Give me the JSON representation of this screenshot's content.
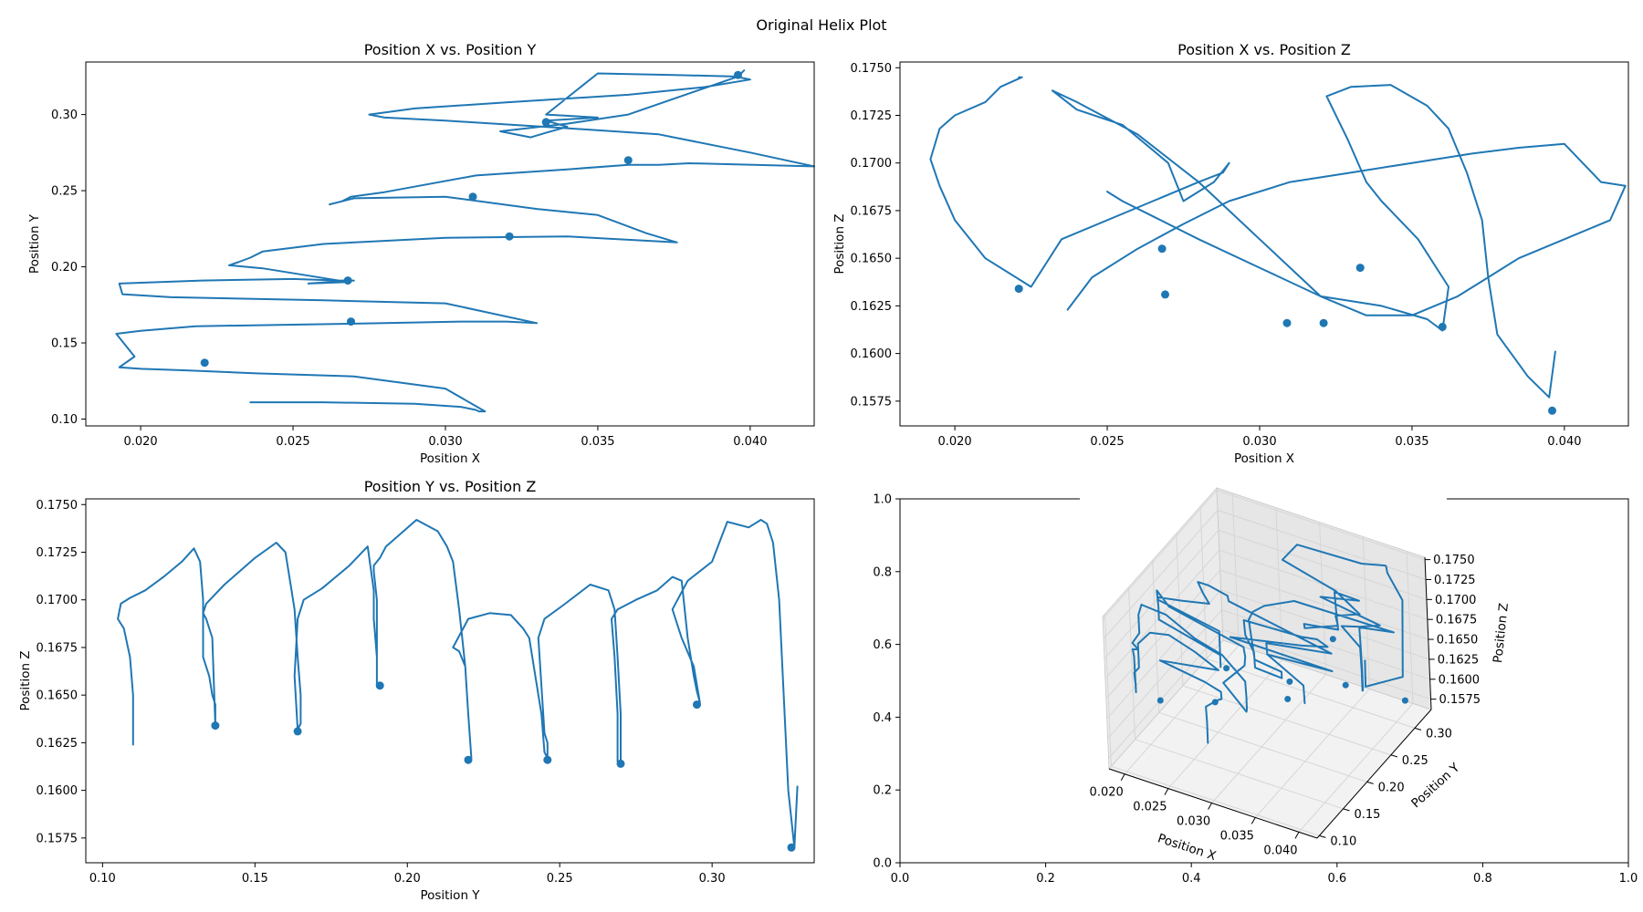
{
  "figure": {
    "suptitle": "Original Helix Plot",
    "line_color": "#1f77b4",
    "background": "#ffffff"
  },
  "chart_data": [
    {
      "type": "line",
      "title": "Position X vs. Position Y",
      "xlabel": "Position X",
      "ylabel": "Position Y",
      "xlim": [
        0.0182,
        0.0421
      ],
      "ylim": [
        0.0955,
        0.3345
      ],
      "xticks": [
        0.02,
        0.025,
        0.03,
        0.035,
        0.04
      ],
      "xtick_labels": [
        "0.020",
        "0.025",
        "0.030",
        "0.035",
        "0.040"
      ],
      "yticks": [
        0.1,
        0.15,
        0.2,
        0.25,
        0.3
      ],
      "ytick_labels": [
        "0.10",
        "0.15",
        "0.20",
        "0.25",
        "0.30"
      ],
      "grid": false,
      "series": [
        {
          "x": [
            0.0236,
            0.026,
            0.029,
            0.0305,
            0.031,
            0.0311,
            0.0313,
            0.03,
            0.027,
            0.0238,
            0.0215,
            0.02,
            0.0193,
            0.0198,
            0.0192,
            0.02,
            0.0218,
            0.025,
            0.028,
            0.0305,
            0.032,
            0.033,
            0.03,
            0.026,
            0.021,
            0.0194,
            0.0193,
            0.022,
            0.025,
            0.0265,
            0.027,
            0.0262,
            0.0255,
            0.0268,
            0.024,
            0.0229,
            0.0232,
            0.0236,
            0.024,
            0.026,
            0.03,
            0.034,
            0.0376,
            0.0366,
            0.035,
            0.033,
            0.03,
            0.027,
            0.0262,
            0.0266,
            0.0269,
            0.028,
            0.031,
            0.034,
            0.036,
            0.037,
            0.038,
            0.0421,
            0.04,
            0.037,
            0.034,
            0.03,
            0.028,
            0.0275,
            0.029,
            0.032,
            0.036,
            0.0385,
            0.04,
            0.0395,
            0.0375,
            0.035,
            0.0333,
            0.035,
            0.0333,
            0.034,
            0.0333,
            0.0328,
            0.0318,
            0.034,
            0.036,
            0.0396,
            0.0398
          ],
          "y": [
            0.111,
            0.111,
            0.11,
            0.108,
            0.106,
            0.105,
            0.105,
            0.12,
            0.128,
            0.13,
            0.132,
            0.133,
            0.134,
            0.141,
            0.156,
            0.158,
            0.161,
            0.162,
            0.163,
            0.164,
            0.164,
            0.163,
            0.176,
            0.178,
            0.18,
            0.182,
            0.189,
            0.191,
            0.192,
            0.191,
            0.191,
            0.19,
            0.189,
            0.19,
            0.199,
            0.201,
            0.203,
            0.206,
            0.21,
            0.215,
            0.219,
            0.22,
            0.216,
            0.222,
            0.234,
            0.238,
            0.246,
            0.245,
            0.241,
            0.243,
            0.246,
            0.249,
            0.26,
            0.264,
            0.267,
            0.267,
            0.268,
            0.266,
            0.275,
            0.287,
            0.291,
            0.296,
            0.298,
            0.3,
            0.304,
            0.308,
            0.313,
            0.318,
            0.323,
            0.325,
            0.326,
            0.327,
            0.3,
            0.298,
            0.296,
            0.292,
            0.288,
            0.285,
            0.289,
            0.294,
            0.3,
            0.325,
            0.329
          ]
        }
      ],
      "markers": {
        "x": [
          0.0221,
          0.0269,
          0.0268,
          0.0321,
          0.0309,
          0.036,
          0.0333,
          0.0396
        ],
        "y": [
          0.137,
          0.164,
          0.191,
          0.22,
          0.246,
          0.27,
          0.295,
          0.326
        ]
      }
    },
    {
      "type": "line",
      "title": "Position X vs. Position Z",
      "xlabel": "Position X",
      "ylabel": "Position Z",
      "xlim": [
        0.0182,
        0.0421
      ],
      "ylim": [
        0.1562,
        0.1753
      ],
      "xticks": [
        0.02,
        0.025,
        0.03,
        0.035,
        0.04
      ],
      "xtick_labels": [
        "0.020",
        "0.025",
        "0.030",
        "0.035",
        "0.040"
      ],
      "yticks": [
        0.1575,
        0.16,
        0.1625,
        0.165,
        0.1675,
        0.17,
        0.1725,
        0.175
      ],
      "ytick_labels": [
        "0.1575",
        "0.1600",
        "0.1625",
        "0.1650",
        "0.1675",
        "0.1700",
        "0.1725",
        "0.1750"
      ],
      "grid": false,
      "series": [
        {
          "x": [
            0.0397,
            0.0395,
            0.0388,
            0.0378,
            0.0375,
            0.0373,
            0.0368,
            0.0362,
            0.0355,
            0.0343,
            0.033,
            0.0322,
            0.0329,
            0.0335,
            0.034,
            0.0352,
            0.0362,
            0.036,
            0.0355,
            0.034,
            0.032,
            0.03,
            0.028,
            0.026,
            0.024,
            0.0232,
            0.024,
            0.0255,
            0.027,
            0.0275,
            0.0285,
            0.029,
            0.0288,
            0.028,
            0.0265,
            0.0235,
            0.0225,
            0.021,
            0.02,
            0.0195,
            0.0192,
            0.0195,
            0.02,
            0.021,
            0.0215,
            0.0222,
            0.0221
          ],
          "y": [
            0.1601,
            0.1577,
            0.1588,
            0.161,
            0.164,
            0.167,
            0.1695,
            0.1718,
            0.173,
            0.1741,
            0.174,
            0.1735,
            0.1712,
            0.169,
            0.168,
            0.166,
            0.1635,
            0.1612,
            0.1618,
            0.1625,
            0.163,
            0.166,
            0.169,
            0.1715,
            0.1732,
            0.1738,
            0.1728,
            0.172,
            0.17,
            0.168,
            0.169,
            0.17,
            0.1695,
            0.169,
            0.168,
            0.166,
            0.1635,
            0.165,
            0.167,
            0.1688,
            0.1702,
            0.1718,
            0.1725,
            0.1732,
            0.174,
            0.1745,
            0.1745
          ]
        },
        {
          "x": [
            0.0237,
            0.0245,
            0.026,
            0.0275,
            0.029,
            0.031,
            0.033,
            0.035,
            0.037,
            0.0385,
            0.04,
            0.0412,
            0.042,
            0.0415,
            0.04,
            0.0385,
            0.0375,
            0.0365,
            0.035,
            0.0335,
            0.032,
            0.03,
            0.028,
            0.0265,
            0.0255,
            0.025
          ],
          "y": [
            0.1623,
            0.164,
            0.1655,
            0.1668,
            0.168,
            0.169,
            0.1695,
            0.17,
            0.1705,
            0.1708,
            0.171,
            0.169,
            0.1688,
            0.167,
            0.166,
            0.165,
            0.164,
            0.163,
            0.162,
            0.162,
            0.163,
            0.1645,
            0.166,
            0.1672,
            0.168,
            0.1685
          ]
        }
      ],
      "markers": {
        "x": [
          0.0221,
          0.0269,
          0.0268,
          0.0321,
          0.0309,
          0.036,
          0.0333,
          0.0396
        ],
        "y": [
          0.1634,
          0.1631,
          0.1655,
          0.1616,
          0.1616,
          0.1614,
          0.1645,
          0.157
        ]
      }
    },
    {
      "type": "line",
      "title": "Position Y vs. Position Z",
      "xlabel": "Position Y",
      "ylabel": "Position Z",
      "xlim": [
        0.0945,
        0.3335
      ],
      "ylim": [
        0.1562,
        0.1753
      ],
      "xticks": [
        0.1,
        0.15,
        0.2,
        0.25,
        0.3
      ],
      "xtick_labels": [
        "0.10",
        "0.15",
        "0.20",
        "0.25",
        "0.30"
      ],
      "yticks": [
        0.1575,
        0.16,
        0.1625,
        0.165,
        0.1675,
        0.17,
        0.1725,
        0.175
      ],
      "ytick_labels": [
        "0.1575",
        "0.1600",
        "0.1625",
        "0.1650",
        "0.1675",
        "0.1700",
        "0.1725",
        "0.1750"
      ],
      "grid": false,
      "series": [
        {
          "x": [
            0.11,
            0.11,
            0.109,
            0.107,
            0.105,
            0.106,
            0.109,
            0.114,
            0.12,
            0.126,
            0.13,
            0.132,
            0.133,
            0.133,
            0.133,
            0.135,
            0.136,
            0.137,
            0.137,
            0.136,
            0.134,
            0.133,
            0.134,
            0.14,
            0.15,
            0.157,
            0.16,
            0.162,
            0.163,
            0.164,
            0.165,
            0.165,
            0.164,
            0.163,
            0.164,
            0.166,
            0.172,
            0.181,
            0.187,
            0.189,
            0.189,
            0.19,
            0.19,
            0.19,
            0.19,
            0.189,
            0.189,
            0.191,
            0.193,
            0.198,
            0.203,
            0.21,
            0.213,
            0.215,
            0.217,
            0.218,
            0.219,
            0.22,
            0.221,
            0.221,
            0.221,
            0.22,
            0.219,
            0.217,
            0.215,
            0.22,
            0.227,
            0.234,
            0.238,
            0.24,
            0.242,
            0.244,
            0.245,
            0.246,
            0.246,
            0.245,
            0.243,
            0.245,
            0.251,
            0.26,
            0.266,
            0.268,
            0.269,
            0.27,
            0.27,
            0.269,
            0.269,
            0.268,
            0.267,
            0.269,
            0.275,
            0.282,
            0.287,
            0.29,
            0.292,
            0.294,
            0.295,
            0.296,
            0.294,
            0.29,
            0.287,
            0.292,
            0.3,
            0.305,
            0.312,
            0.316,
            0.318,
            0.32,
            0.322,
            0.325,
            0.327,
            0.328
          ],
          "y": [
            0.1624,
            0.165,
            0.167,
            0.1685,
            0.169,
            0.1698,
            0.1701,
            0.1705,
            0.1712,
            0.172,
            0.1727,
            0.172,
            0.17,
            0.168,
            0.167,
            0.166,
            0.165,
            0.1645,
            0.1634,
            0.168,
            0.169,
            0.1693,
            0.1698,
            0.1708,
            0.1722,
            0.173,
            0.1725,
            0.1705,
            0.1695,
            0.167,
            0.165,
            0.1635,
            0.1632,
            0.166,
            0.169,
            0.17,
            0.1706,
            0.1718,
            0.1728,
            0.1705,
            0.169,
            0.167,
            0.1655,
            0.168,
            0.17,
            0.1715,
            0.1718,
            0.1722,
            0.1728,
            0.1735,
            0.1742,
            0.1736,
            0.1728,
            0.172,
            0.1695,
            0.168,
            0.1665,
            0.164,
            0.1617,
            0.1617,
            0.1617,
            0.164,
            0.1665,
            0.1673,
            0.1675,
            0.169,
            0.1693,
            0.1692,
            0.1685,
            0.168,
            0.166,
            0.164,
            0.162,
            0.1617,
            0.1625,
            0.163,
            0.168,
            0.169,
            0.1697,
            0.1708,
            0.1705,
            0.1695,
            0.167,
            0.164,
            0.1615,
            0.1615,
            0.164,
            0.167,
            0.169,
            0.1695,
            0.17,
            0.1705,
            0.1712,
            0.171,
            0.168,
            0.166,
            0.1652,
            0.1646,
            0.1665,
            0.168,
            0.1695,
            0.171,
            0.172,
            0.1741,
            0.1738,
            0.1742,
            0.174,
            0.173,
            0.17,
            0.16,
            0.157,
            0.1602
          ]
        }
      ],
      "markers": {
        "x": [
          0.137,
          0.164,
          0.191,
          0.22,
          0.246,
          0.27,
          0.295,
          0.326
        ],
        "y": [
          0.1634,
          0.1631,
          0.1655,
          0.1616,
          0.1616,
          0.1614,
          0.1645,
          0.157
        ]
      }
    },
    {
      "type": "line",
      "title": "",
      "projection": "3d",
      "outer_axes": {
        "xlim": [
          0.0,
          1.0
        ],
        "ylim": [
          0.0,
          1.0
        ],
        "xticks": [
          0.0,
          0.2,
          0.4,
          0.6,
          0.8,
          1.0
        ],
        "xtick_labels": [
          "0.0",
          "0.2",
          "0.4",
          "0.6",
          "0.8",
          "1.0"
        ],
        "yticks": [
          0.0,
          0.2,
          0.4,
          0.6,
          0.8,
          1.0
        ],
        "ytick_labels": [
          "0.0",
          "0.2",
          "0.4",
          "0.6",
          "0.8",
          "1.0"
        ]
      },
      "xlabel": "Position X",
      "ylabel": "Position Y",
      "zlabel": "Position Z",
      "xlim": [
        0.0182,
        0.0421
      ],
      "ylim": [
        0.0955,
        0.3345
      ],
      "zlim": [
        0.1562,
        0.1753
      ],
      "xtick_labels": [
        "0.020",
        "0.025",
        "0.030",
        "0.035",
        "0.040"
      ],
      "xticks": [
        0.02,
        0.025,
        0.03,
        0.035,
        0.04
      ],
      "ytick_labels": [
        "0.10",
        "0.15",
        "0.20",
        "0.25",
        "0.30"
      ],
      "yticks": [
        0.1,
        0.15,
        0.2,
        0.25,
        0.3
      ],
      "ztick_labels": [
        "0.1575",
        "0.1600",
        "0.1625",
        "0.1650",
        "0.1675",
        "0.1700",
        "0.1725",
        "0.1750"
      ],
      "zticks": [
        0.1575,
        0.16,
        0.1625,
        0.165,
        0.1675,
        0.17,
        0.1725,
        0.175
      ],
      "grid": true
    }
  ]
}
